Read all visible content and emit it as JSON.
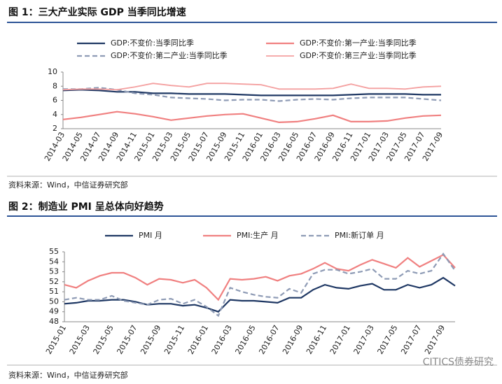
{
  "chart_data": [
    {
      "type": "line",
      "figure_title": "图 1：三大产业实际 GDP 当季同比增速",
      "source": "资料来源：Wind，中信证券研究部",
      "categories": [
        "2014-03",
        "2014-05",
        "2014-07",
        "2014-09",
        "2014-11",
        "2015-01",
        "2015-03",
        "2015-05",
        "2015-07",
        "2015-09",
        "2015-11",
        "2016-01",
        "2016-03",
        "2016-05",
        "2016-07",
        "2016-09",
        "2016-11",
        "2017-01",
        "2017-03",
        "2017-05",
        "2017-07",
        "2017-09"
      ],
      "series": [
        {
          "name": "GDP:不变价:当季同比季",
          "color": "#1f3864",
          "style": "solid",
          "width": 2.2,
          "values": [
            7.4,
            7.5,
            7.4,
            7.2,
            7.2,
            7.0,
            7.0,
            6.9,
            6.9,
            6.9,
            6.8,
            6.7,
            6.7,
            6.7,
            6.7,
            6.7,
            6.8,
            6.9,
            6.9,
            6.9,
            6.8,
            6.8
          ]
        },
        {
          "name": "GDP:不变价:第一产业:当季同比季",
          "color": "#f08080",
          "style": "solid",
          "width": 2.2,
          "values": [
            3.3,
            3.6,
            4.0,
            4.4,
            4.1,
            3.7,
            3.2,
            3.5,
            3.8,
            4.0,
            4.1,
            3.5,
            2.9,
            3.0,
            3.4,
            3.9,
            3.0,
            3.0,
            3.1,
            3.5,
            3.8,
            3.9
          ]
        },
        {
          "name": "GDP:不变价:第二产业:当季同比季",
          "color": "#8e9bb5",
          "style": "dashed",
          "width": 2.2,
          "values": [
            7.6,
            7.6,
            7.8,
            7.5,
            7.0,
            6.8,
            6.4,
            6.3,
            6.2,
            6.0,
            6.1,
            6.1,
            5.9,
            6.1,
            6.2,
            6.1,
            6.3,
            6.4,
            6.4,
            6.4,
            6.2,
            6.0
          ]
        },
        {
          "name": "GDP:不变价:第三产业:当季同比季",
          "color": "#f4a0a0",
          "style": "solid",
          "width": 1.8,
          "values": [
            7.5,
            7.6,
            7.6,
            7.5,
            7.9,
            8.4,
            8.1,
            7.9,
            8.4,
            8.4,
            8.3,
            8.2,
            7.6,
            7.6,
            7.6,
            7.7,
            8.3,
            7.7,
            7.7,
            7.6,
            7.9,
            8.0
          ]
        }
      ],
      "ylim": [
        2,
        10
      ],
      "yticks": [
        2,
        4,
        6,
        8,
        10
      ]
    },
    {
      "type": "line",
      "figure_title": "图 2：制造业 PMI 呈总体向好趋势",
      "source": "资料来源：Wind，中信证券研究部",
      "categories": [
        "2015-01",
        null,
        "2015-03",
        null,
        "2015-05",
        null,
        "2015-07",
        null,
        "2015-09",
        null,
        "2015-11",
        null,
        "2016-01",
        null,
        "2016-03",
        null,
        "2016-05",
        null,
        "2016-07",
        null,
        "2016-09",
        null,
        "2016-11",
        null,
        "2017-01",
        null,
        "2017-03",
        null,
        "2017-05",
        null,
        "2017-07",
        null,
        "2017-09",
        null
      ],
      "series": [
        {
          "name": "PMI 月",
          "color": "#1f3864",
          "style": "solid",
          "width": 2.2,
          "values": [
            49.8,
            49.9,
            50.1,
            50.1,
            50.2,
            50.2,
            50.0,
            49.7,
            49.8,
            49.8,
            49.6,
            49.7,
            49.4,
            49.0,
            50.2,
            50.1,
            50.1,
            50.0,
            49.9,
            50.4,
            50.4,
            51.2,
            51.7,
            51.4,
            51.3,
            51.6,
            51.8,
            51.2,
            51.2,
            51.7,
            51.4,
            51.7,
            52.4,
            51.6
          ]
        },
        {
          "name": "PMI:生产 月",
          "color": "#f08080",
          "style": "solid",
          "width": 2.2,
          "values": [
            51.7,
            51.4,
            52.1,
            52.6,
            52.9,
            52.9,
            52.4,
            51.7,
            52.3,
            52.2,
            51.9,
            52.2,
            51.4,
            50.2,
            52.3,
            52.2,
            52.3,
            52.5,
            52.1,
            52.6,
            52.8,
            53.3,
            53.9,
            53.3,
            53.1,
            53.7,
            54.2,
            53.8,
            53.4,
            54.4,
            53.5,
            54.1,
            54.7,
            53.4
          ]
        },
        {
          "name": "PMI:新订单 月",
          "color": "#8e9bb5",
          "style": "dashed",
          "width": 2.2,
          "values": [
            50.2,
            50.4,
            50.2,
            50.2,
            50.6,
            50.1,
            49.9,
            49.7,
            50.2,
            50.3,
            49.8,
            50.2,
            49.5,
            48.6,
            51.4,
            51.0,
            50.7,
            50.5,
            50.4,
            51.3,
            50.9,
            52.8,
            53.2,
            53.2,
            52.8,
            53.0,
            53.3,
            52.3,
            52.3,
            53.1,
            52.8,
            53.1,
            54.8,
            53.1
          ]
        }
      ],
      "ylim": [
        48,
        55
      ],
      "yticks": [
        48,
        49,
        50,
        51,
        52,
        53,
        54,
        55
      ]
    }
  ],
  "watermark": "CITICS债券研究"
}
